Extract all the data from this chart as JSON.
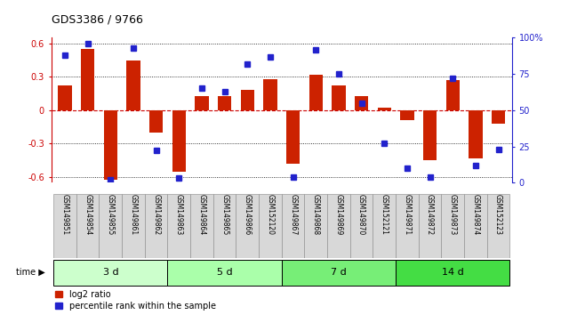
{
  "title": "GDS3386 / 9766",
  "samples": [
    "GSM149851",
    "GSM149854",
    "GSM149855",
    "GSM149861",
    "GSM149862",
    "GSM149863",
    "GSM149864",
    "GSM149865",
    "GSM149866",
    "GSM152120",
    "GSM149867",
    "GSM149868",
    "GSM149869",
    "GSM149870",
    "GSM152121",
    "GSM149871",
    "GSM149872",
    "GSM149873",
    "GSM149874",
    "GSM152123"
  ],
  "log2_ratio": [
    0.22,
    0.55,
    -0.62,
    0.45,
    -0.2,
    -0.55,
    0.13,
    0.13,
    0.18,
    0.28,
    -0.48,
    0.32,
    0.22,
    0.13,
    0.02,
    -0.09,
    -0.45,
    0.27,
    -0.43,
    -0.12
  ],
  "percentile": [
    88,
    96,
    2,
    93,
    22,
    3,
    65,
    63,
    82,
    87,
    4,
    92,
    75,
    55,
    27,
    10,
    4,
    72,
    12,
    23
  ],
  "groups": [
    {
      "label": "3 d",
      "start": 0,
      "end": 5,
      "color": "#ccffcc"
    },
    {
      "label": "5 d",
      "start": 5,
      "end": 10,
      "color": "#aaffaa"
    },
    {
      "label": "7 d",
      "start": 10,
      "end": 15,
      "color": "#77ee77"
    },
    {
      "label": "14 d",
      "start": 15,
      "end": 20,
      "color": "#44dd44"
    }
  ],
  "ylim": [
    -0.65,
    0.65
  ],
  "yticks": [
    -0.6,
    -0.3,
    0.0,
    0.3,
    0.6
  ],
  "ytick_labels_left": [
    "-0.6",
    "-0.3",
    "0",
    "0.3",
    "0.6"
  ],
  "ytick_labels_right": [
    "0",
    "25",
    "50",
    "75",
    "100%"
  ],
  "bar_color": "#cc2200",
  "dot_color": "#2222cc",
  "hline_color": "#cc0000"
}
